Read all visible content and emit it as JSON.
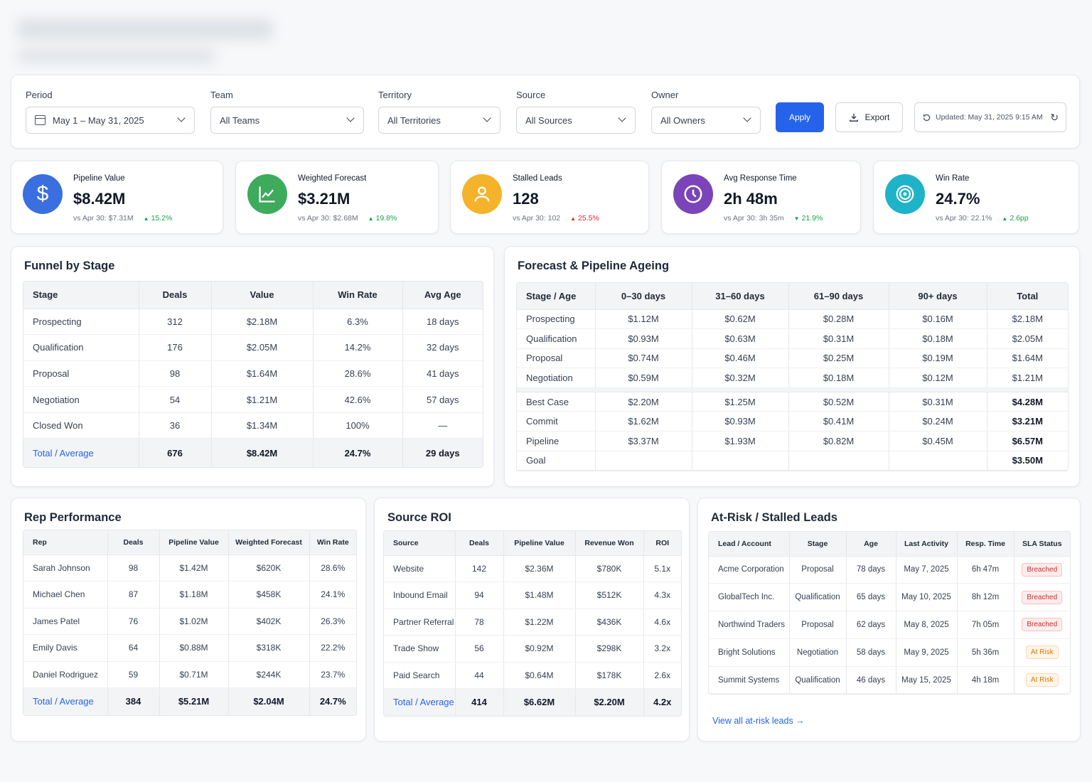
{
  "filters": {
    "period": {
      "label": "Period",
      "value": "May 1 – May 31, 2025"
    },
    "team": {
      "label": "Team",
      "value": "All Teams"
    },
    "territory": {
      "label": "Territory",
      "value": "All Territories"
    },
    "source": {
      "label": "Source",
      "value": "All Sources"
    },
    "owner": {
      "label": "Owner",
      "value": "All Owners"
    },
    "apply_label": "Apply",
    "export_label": "Export",
    "updated": "Updated: May 31, 2025 9:15 AM"
  },
  "kpis": [
    {
      "title": "Pipeline Value",
      "value": "$8.42M",
      "compare": "vs Apr 30: $7.31M",
      "delta": "15.2%",
      "icon": "dollar-icon",
      "color": "#3b6fe0"
    },
    {
      "title": "Weighted Forecast",
      "value": "$3.21M",
      "compare": "vs Apr 30: $2.68M",
      "delta": "19.8%",
      "icon": "trend-up-icon",
      "color": "#3daa5c"
    },
    {
      "title": "Stalled Leads",
      "value": "128",
      "compare": "vs Apr 30: 102",
      "delta": "25.5%",
      "icon": "user-icon",
      "color": "#f5b32b"
    },
    {
      "title": "Avg Response Time",
      "value": "2h 48m",
      "compare": "vs Apr 30: 3h 35m",
      "delta": "21.9%",
      "icon": "clock-icon",
      "color": "#7b44b8"
    },
    {
      "title": "Win Rate",
      "value": "24.7%",
      "compare": "vs Apr 30: 22.1%",
      "delta": "2.6pp",
      "icon": "target-icon",
      "color": "#1fb3c9"
    }
  ],
  "funnel": {
    "title": "Funnel by Stage",
    "headers": [
      "Stage",
      "Deals",
      "Value",
      "Win Rate",
      "Avg Age"
    ],
    "rows": [
      [
        "Prospecting",
        "312",
        "$2.18M",
        "6.3%",
        "18 days"
      ],
      [
        "Qualification",
        "176",
        "$2.05M",
        "14.2%",
        "32 days"
      ],
      [
        "Proposal",
        "98",
        "$1.64M",
        "28.6%",
        "41 days"
      ],
      [
        "Negotiation",
        "54",
        "$1.21M",
        "42.6%",
        "57 days"
      ],
      [
        "Closed Won",
        "36",
        "$1.34M",
        "100%",
        "—"
      ]
    ],
    "total": [
      "Total / Average",
      "676",
      "$8.42M",
      "24.7%",
      "29 days"
    ]
  },
  "forecast": {
    "title": "Forecast & Pipeline Ageing",
    "headers": [
      "Stage / Age",
      "0–30 days",
      "31–60 days",
      "61–90 days",
      "90+ days",
      "Total"
    ],
    "ageing": [
      [
        "Prospecting",
        "$1.12M",
        "$0.62M",
        "$0.28M",
        "$0.16M",
        "$2.18M"
      ],
      [
        "Qualification",
        "$0.93M",
        "$0.63M",
        "$0.31M",
        "$0.18M",
        "$2.05M"
      ],
      [
        "Proposal",
        "$0.74M",
        "$0.46M",
        "$0.25M",
        "$0.19M",
        "$1.64M"
      ],
      [
        "Negotiation",
        "$0.59M",
        "$0.32M",
        "$0.18M",
        "$0.12M",
        "$1.21M"
      ]
    ],
    "forecast_rows": [
      [
        "Best Case",
        "$2.20M",
        "$1.25M",
        "$0.52M",
        "$0.31M",
        "$4.28M"
      ],
      [
        "Commit",
        "$1.62M",
        "$0.93M",
        "$0.41M",
        "$0.24M",
        "$3.21M"
      ],
      [
        "Pipeline",
        "$3.37M",
        "$1.93M",
        "$0.82M",
        "$0.45M",
        "$6.57M"
      ],
      [
        "Goal",
        "",
        "",
        "",
        "",
        "$3.50M"
      ]
    ]
  },
  "rep": {
    "title": "Rep Performance",
    "headers": [
      "Rep",
      "Deals",
      "Pipeline Value",
      "Weighted Forecast",
      "Win Rate"
    ],
    "rows": [
      [
        "Sarah Johnson",
        "98",
        "$1.42M",
        "$620K",
        "28.6%"
      ],
      [
        "Michael Chen",
        "87",
        "$1.18M",
        "$458K",
        "24.1%"
      ],
      [
        "James Patel",
        "76",
        "$1.02M",
        "$402K",
        "26.3%"
      ],
      [
        "Emily Davis",
        "64",
        "$0.88M",
        "$318K",
        "22.2%"
      ],
      [
        "Daniel Rodriguez",
        "59",
        "$0.71M",
        "$244K",
        "23.7%"
      ]
    ],
    "total": [
      "Total / Average",
      "384",
      "$5.21M",
      "$2.04M",
      "24.7%"
    ]
  },
  "roi": {
    "title": "Source ROI",
    "headers": [
      "Source",
      "Deals",
      "Pipeline Value",
      "Revenue Won",
      "ROI"
    ],
    "rows": [
      [
        "Website",
        "142",
        "$2.36M",
        "$780K",
        "5.1x"
      ],
      [
        "Inbound Email",
        "94",
        "$1.48M",
        "$512K",
        "4.3x"
      ],
      [
        "Partner Referral",
        "78",
        "$1.22M",
        "$436K",
        "4.6x"
      ],
      [
        "Trade Show",
        "56",
        "$0.92M",
        "$298K",
        "3.2x"
      ],
      [
        "Paid Search",
        "44",
        "$0.64M",
        "$178K",
        "2.6x"
      ]
    ],
    "total": [
      "Total / Average",
      "414",
      "$6.62M",
      "$2.20M",
      "4.2x"
    ]
  },
  "risk": {
    "title": "At-Risk / Stalled Leads",
    "headers": [
      "Lead / Account",
      "Stage",
      "Age",
      "Last Activity",
      "Resp. Time",
      "SLA Status"
    ],
    "rows": [
      [
        "Acme Corporation",
        "Proposal",
        "78 days",
        "May 7, 2025",
        "6h 47m",
        "Breached"
      ],
      [
        "GlobalTech Inc.",
        "Qualification",
        "65 days",
        "May 10, 2025",
        "8h 12m",
        "Breached"
      ],
      [
        "Northwind Traders",
        "Proposal",
        "62 days",
        "May 8, 2025",
        "7h 05m",
        "Breached"
      ],
      [
        "Bright Solutions",
        "Negotiation",
        "58 days",
        "May 9, 2025",
        "5h 36m",
        "At Risk"
      ],
      [
        "Summit Systems",
        "Qualification",
        "46 days",
        "May 15, 2025",
        "4h 18m",
        "At Risk"
      ]
    ],
    "view_all": "View all at-risk leads →"
  }
}
